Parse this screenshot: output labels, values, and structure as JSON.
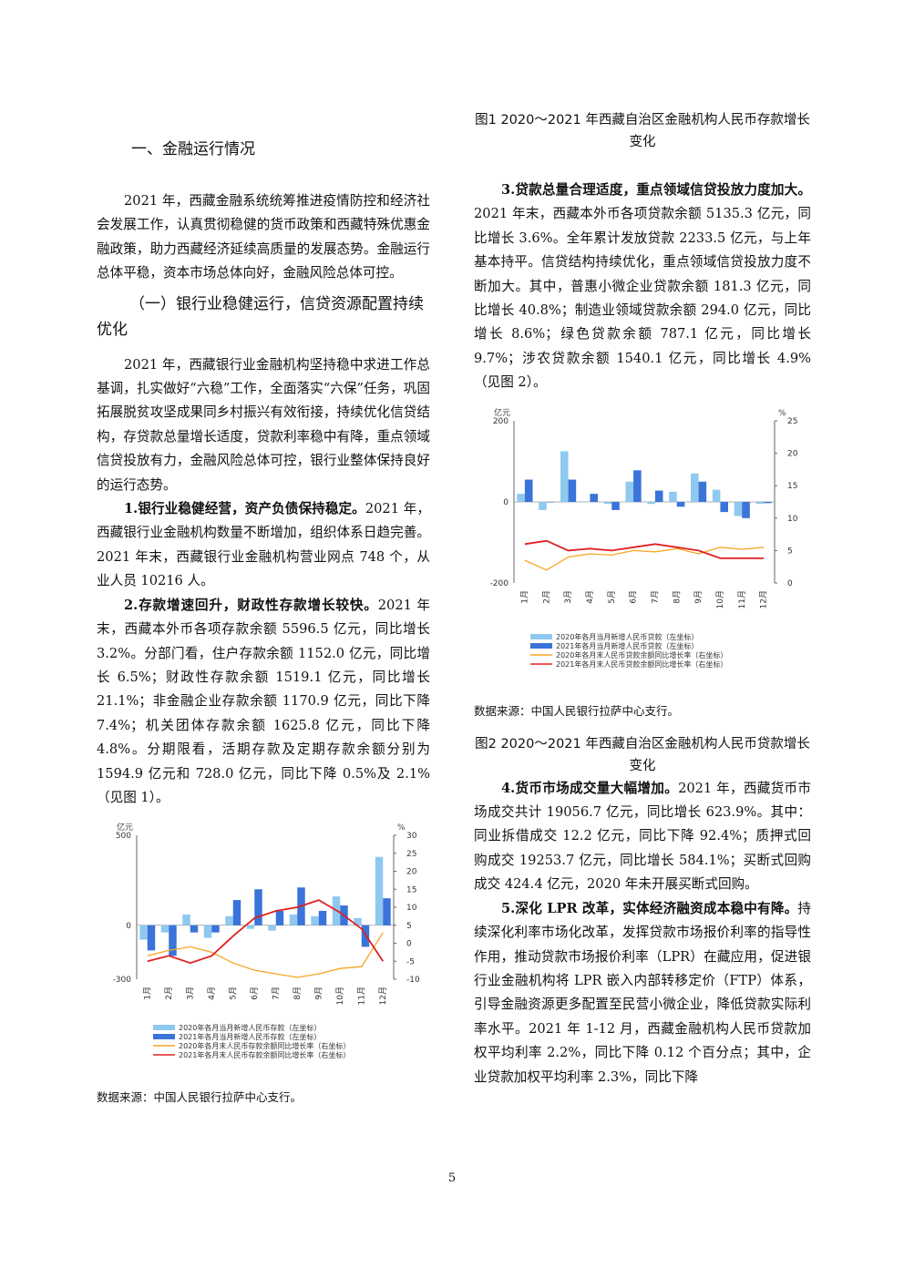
{
  "left": {
    "section_heading": "一、金融运行情况",
    "intro_para": "2021 年，西藏金融系统统筹推进疫情防控和经济社会发展工作，认真贯彻稳健的货币政策和西藏特殊优惠金融政策，助力西藏经济延续高质量的发展态势。金融运行总体平稳，资本市场总体向好，金融风险总体可控。",
    "sub_heading": "（一）银行业稳健运行，信贷资源配置持续优化",
    "bank_para": "2021 年，西藏银行业金融机构坚持稳中求进工作总基调，扎实做好“六稳”工作，全面落实“六保”任务，巩固拓展脱贫攻坚成果同乡村振兴有效衔接，持续优化信贷结构，存贷款总量增长适度，贷款利率稳中有降，重点领域信贷投放有力，金融风险总体可控，银行业整体保持良好的运行态势。",
    "p1_bold": "1.银行业稳健经营，资产负债保持稳定。",
    "p1_text": "2021 年，西藏银行业金融机构数量不断增加，组织体系日趋完善。2021 年末，西藏银行业金融机构营业网点 748 个，从业人员 10216 人。",
    "p2_bold": "2.存款增速回升，财政性存款增长较快。",
    "p2_text": "2021 年末，西藏本外币各项存款余额 5596.5 亿元，同比增长 3.2%。分部门看，住户存款余额 1152.0 亿元，同比增长 6.5%；财政性存款余额 1519.1 亿元，同比增长 21.1%；非金融企业存款余额 1170.9 亿元，同比下降 7.4%；机关团体存款余额 1625.8 亿元，同比下降 4.8%。分期限看，活期存款及定期存款余额分别为 1594.9 亿元和 728.0 亿元，同比下降 0.5%及 2.1%（见图 1）。",
    "source": "数据来源：中国人民银行拉萨中心支行。"
  },
  "right": {
    "fig1_title": "图1 2020～2021 年西藏自治区金融机构人民币存款增长变化",
    "p3_bold": "3.贷款总量合理适度，重点领域信贷投放力度加大。",
    "p3_text": "2021 年末，西藏本外币各项贷款余额 5135.3 亿元，同比增长 3.6%。全年累计发放贷款 2233.5 亿元，与上年基本持平。信贷结构持续优化，重点领域信贷投放力度不断加大。其中，普惠小微企业贷款余额 181.3 亿元，同比增长 40.8%；制造业领域贷款余额 294.0 亿元，同比增长 8.6%；绿色贷款余额 787.1 亿元，同比增长 9.7%；涉农贷款余额 1540.1 亿元，同比增长 4.9%（见图 2）。",
    "source": "数据来源：中国人民银行拉萨中心支行。",
    "fig2_title": "图2 2020～2021 年西藏自治区金融机构人民币贷款增长变化",
    "p4_bold": "4.货币市场成交量大幅增加。",
    "p4_text": "2021 年，西藏货币市场成交共计 19056.7 亿元，同比增长 623.9%。其中：同业拆借成交 12.2 亿元，同比下降 92.4%；质押式回购成交 19253.7 亿元，同比增长 584.1%；买断式回购成交 424.4 亿元，2020 年未开展买断式回购。",
    "p5_bold": "5.深化 LPR 改革，实体经济融资成本稳中有降。",
    "p5_text": "持续深化利率市场化改革，发挥贷款市场报价利率的指导性作用，推动贷款市场报价利率（LPR）在藏应用，促进银行业金融机构将 LPR 嵌入内部转移定价（FTP）体系，引导金融资源更多配置至民营小微企业，降低贷款实际利率水平。2021 年 1-12 月，西藏金融机构人民币贷款加权平均利率 2.2%，同比下降 0.12 个百分点；其中，企业贷款加权平均利率 2.3%，同比下降"
  },
  "page_number": "5",
  "chart_data": [
    {
      "type": "bar",
      "title": "",
      "left_unit": "亿元",
      "right_unit": "%",
      "left_ylim": [
        -300,
        500
      ],
      "left_ticks": [
        "500",
        "0",
        "-300"
      ],
      "right_ylim": [
        -10,
        30
      ],
      "right_ticks": [
        "30",
        "25",
        "20",
        "15",
        "10",
        "5",
        "0",
        "-5",
        "-10"
      ],
      "categories": [
        "1月",
        "2月",
        "3月",
        "4月",
        "5月",
        "6月",
        "7月",
        "8月",
        "9月",
        "10月",
        "11月",
        "12月"
      ],
      "series": [
        {
          "name": "2020年各月当月新增人民币存款（左坐标）",
          "axis": "left",
          "kind": "bar",
          "color": "#8fc9ef",
          "values": [
            -80,
            -40,
            60,
            -70,
            50,
            -20,
            -30,
            60,
            50,
            160,
            40,
            380
          ]
        },
        {
          "name": "2021年各月当月新增人民币存款（左坐标）",
          "axis": "left",
          "kind": "bar",
          "color": "#3a73d9",
          "values": [
            -140,
            -170,
            -40,
            -40,
            140,
            200,
            80,
            210,
            80,
            110,
            -120,
            150
          ]
        },
        {
          "name": "2020年各月末人民币存款余额同比增长率（右坐标）",
          "axis": "right",
          "kind": "line",
          "color": "#f5a623",
          "values": [
            -3.5,
            -2,
            -1,
            -2.5,
            -5.5,
            -7.5,
            -8.5,
            -9.5,
            -8.5,
            -7,
            -6.5,
            3
          ]
        },
        {
          "name": "2021年各月末人民币存款余额同比增长率（右坐标）",
          "axis": "right",
          "kind": "line",
          "color": "#e02020",
          "values": [
            -5,
            -3.5,
            -5.5,
            -3.5,
            2,
            7,
            9,
            10,
            12,
            8.5,
            4,
            -5
          ]
        }
      ]
    },
    {
      "type": "bar",
      "title": "",
      "left_unit": "亿元",
      "right_unit": "%",
      "left_ylim": [
        -200,
        200
      ],
      "left_ticks": [
        "200",
        "0",
        "-200"
      ],
      "right_ylim": [
        0,
        25
      ],
      "right_ticks": [
        "25",
        "20",
        "15",
        "10",
        "5",
        "0"
      ],
      "categories": [
        "1月",
        "2月",
        "3月",
        "4月",
        "5月",
        "6月",
        "7月",
        "8月",
        "9月",
        "10月",
        "11月",
        "12月"
      ],
      "series": [
        {
          "name": "2020年各月当月新增人民币贷款（左坐标）",
          "axis": "left",
          "kind": "bar",
          "color": "#8fc9ef",
          "values": [
            20,
            -20,
            125,
            0,
            -5,
            50,
            -5,
            25,
            70,
            30,
            -35,
            -5
          ]
        },
        {
          "name": "2021年各月当月新增人民币贷款（左坐标）",
          "axis": "left",
          "kind": "bar",
          "color": "#3a73d9",
          "values": [
            55,
            0,
            55,
            20,
            -20,
            78,
            28,
            -12,
            50,
            -25,
            -40,
            -3
          ]
        },
        {
          "name": "2020年各月末人民币贷款余额同比增长率（右坐标）",
          "axis": "right",
          "kind": "line",
          "color": "#f5a623",
          "values": [
            3.5,
            2,
            4,
            4.5,
            4.3,
            5,
            4.8,
            5.3,
            4.5,
            5.5,
            5.2,
            5.5
          ]
        },
        {
          "name": "2021年各月末人民币贷款余额同比增长率（右坐标）",
          "axis": "right",
          "kind": "line",
          "color": "#e02020",
          "values": [
            6,
            6.5,
            5,
            5.3,
            5,
            5.5,
            6,
            5.5,
            5,
            3.8,
            3.8,
            3.8
          ]
        }
      ]
    }
  ]
}
